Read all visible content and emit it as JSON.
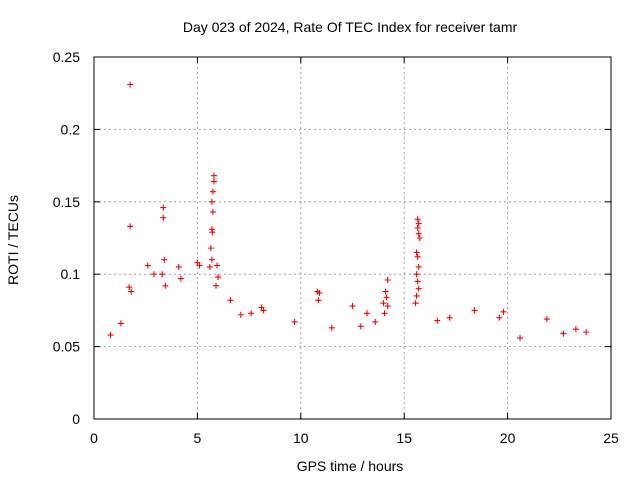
{
  "chart_data": {
    "type": "scatter",
    "title": "Day 023 of 2024, Rate Of TEC Index for receiver tamr",
    "xlabel": "GPS time / hours",
    "ylabel": "ROTI / TECUs",
    "xlim": [
      0,
      25
    ],
    "ylim": [
      0,
      0.25
    ],
    "x_ticks": [
      0,
      5,
      10,
      15,
      20,
      25
    ],
    "x_tick_labels": [
      "0",
      "5",
      "10",
      "15",
      "20",
      "25"
    ],
    "y_ticks": [
      0,
      0.05,
      0.1,
      0.15,
      0.2,
      0.25
    ],
    "y_tick_labels": [
      "0",
      "0.05",
      "0.1",
      "0.15",
      "0.2",
      "0.25"
    ],
    "grid": true,
    "marker": "plus",
    "color": "#ff0000",
    "series": [
      {
        "points": [
          [
            1.75,
            0.231
          ],
          [
            1.75,
            0.133
          ],
          [
            1.7,
            0.091
          ],
          [
            1.8,
            0.088
          ],
          [
            3.35,
            0.146
          ],
          [
            3.35,
            0.139
          ],
          [
            3.4,
            0.11
          ],
          [
            3.3,
            0.1
          ],
          [
            3.45,
            0.092
          ],
          [
            5.0,
            0.108
          ],
          [
            5.1,
            0.106
          ],
          [
            4.1,
            0.105
          ],
          [
            4.2,
            0.097
          ],
          [
            2.6,
            0.106
          ],
          [
            2.9,
            0.1
          ],
          [
            5.8,
            0.168
          ],
          [
            5.8,
            0.164
          ],
          [
            5.75,
            0.157
          ],
          [
            5.7,
            0.15
          ],
          [
            5.75,
            0.143
          ],
          [
            5.7,
            0.131
          ],
          [
            5.72,
            0.129
          ],
          [
            5.65,
            0.118
          ],
          [
            5.7,
            0.11
          ],
          [
            5.6,
            0.105
          ],
          [
            5.95,
            0.106
          ],
          [
            6.0,
            0.098
          ],
          [
            5.9,
            0.092
          ],
          [
            15.65,
            0.138
          ],
          [
            15.7,
            0.135
          ],
          [
            15.65,
            0.132
          ],
          [
            15.7,
            0.128
          ],
          [
            15.75,
            0.125
          ],
          [
            15.6,
            0.115
          ],
          [
            15.65,
            0.112
          ],
          [
            15.7,
            0.105
          ],
          [
            15.6,
            0.1
          ],
          [
            15.65,
            0.095
          ],
          [
            15.7,
            0.09
          ],
          [
            15.6,
            0.085
          ],
          [
            15.55,
            0.08
          ],
          [
            14.2,
            0.096
          ],
          [
            14.1,
            0.088
          ],
          [
            14.15,
            0.084
          ],
          [
            14.0,
            0.08
          ],
          [
            14.2,
            0.078
          ],
          [
            14.05,
            0.073
          ],
          [
            10.8,
            0.088
          ],
          [
            10.9,
            0.087
          ],
          [
            10.85,
            0.082
          ],
          [
            8.1,
            0.077
          ],
          [
            8.2,
            0.075
          ],
          [
            7.6,
            0.073
          ],
          [
            12.5,
            0.078
          ],
          [
            13.2,
            0.073
          ],
          [
            13.6,
            0.067
          ],
          [
            16.6,
            0.068
          ],
          [
            17.2,
            0.07
          ],
          [
            18.4,
            0.075
          ],
          [
            19.6,
            0.07
          ],
          [
            19.8,
            0.074
          ],
          [
            21.9,
            0.069
          ],
          [
            23.8,
            0.06
          ],
          [
            1.3,
            0.066
          ],
          [
            0.8,
            0.058
          ],
          [
            6.6,
            0.082
          ],
          [
            7.1,
            0.072
          ],
          [
            9.7,
            0.067
          ],
          [
            11.5,
            0.063
          ],
          [
            12.9,
            0.064
          ],
          [
            20.6,
            0.056
          ],
          [
            22.7,
            0.059
          ],
          [
            23.3,
            0.062
          ]
        ]
      }
    ]
  }
}
